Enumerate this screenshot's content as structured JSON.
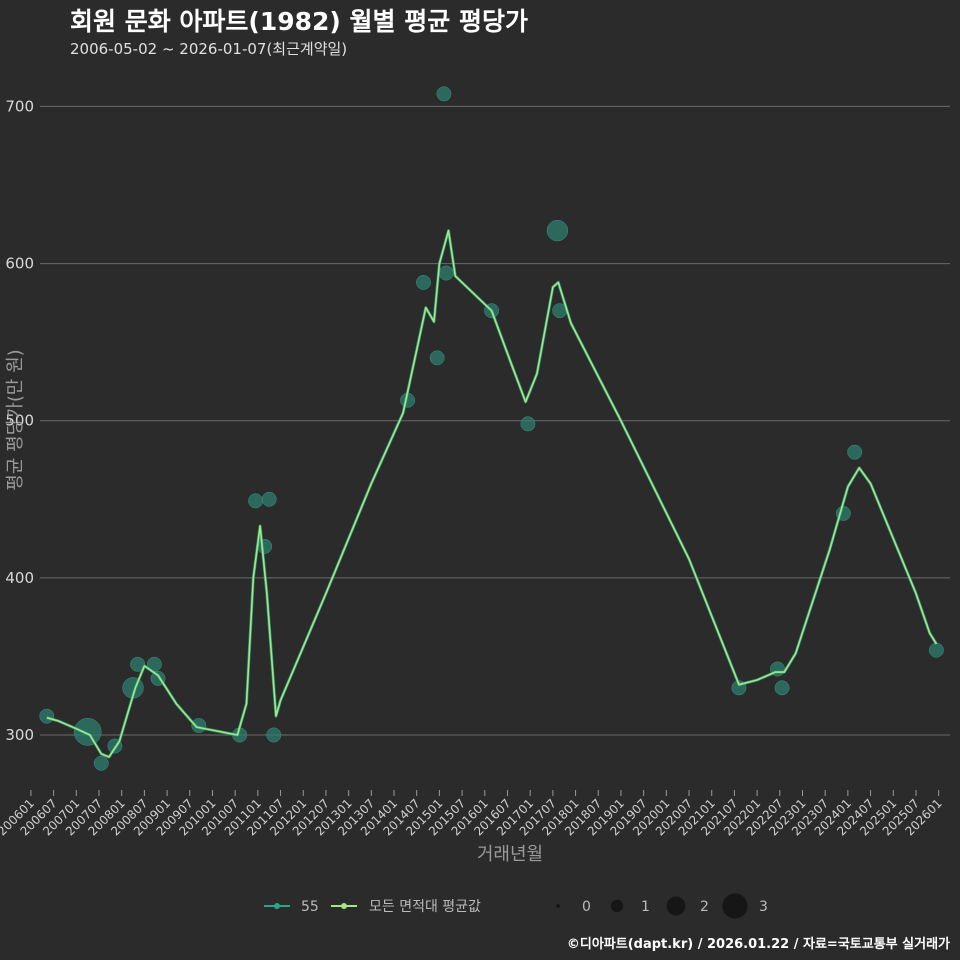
{
  "header": {
    "title": "회원 문화 아파트(1982) 월별 평균 평당가",
    "subtitle": "2006-05-02 ~ 2026-01-07(최근계약일)"
  },
  "caption": "©디아파트(dapt.kr) / 2026.01.22 / 자료=국토교통부 실거래가",
  "colors": {
    "background": "#2b2b2c",
    "grid": "#6b6b6b",
    "point": "#2f7d6e",
    "line_area": "#2aa58c",
    "line_all": "#a6e87e"
  },
  "chart_data": {
    "type": "scatter",
    "xlabel": "거래년월",
    "ylabel": "평균 평당가(만 원)",
    "ylim": [
      265,
      720
    ],
    "yticks": [
      300,
      400,
      500,
      600,
      700
    ],
    "xlim": [
      2006.2,
      2026.25
    ],
    "xticks": [
      "200601",
      "200607",
      "200701",
      "200707",
      "200801",
      "200807",
      "200901",
      "200907",
      "201001",
      "201007",
      "201101",
      "201107",
      "201201",
      "201207",
      "201301",
      "201307",
      "201401",
      "201407",
      "201501",
      "201507",
      "201601",
      "201607",
      "201701",
      "201707",
      "201801",
      "201807",
      "201901",
      "201907",
      "202001",
      "202007",
      "202101",
      "202107",
      "202201",
      "202207",
      "202301",
      "202307",
      "202401",
      "202407",
      "202501",
      "202507",
      "202601"
    ],
    "series": [
      {
        "name": "55",
        "points": [
          {
            "t": 2006.35,
            "v": 312,
            "n": 1
          },
          {
            "t": 2007.25,
            "v": 302,
            "n": 3
          },
          {
            "t": 2007.55,
            "v": 282,
            "n": 1
          },
          {
            "t": 2007.85,
            "v": 293,
            "n": 1
          },
          {
            "t": 2008.25,
            "v": 330,
            "n": 2
          },
          {
            "t": 2008.35,
            "v": 345,
            "n": 1
          },
          {
            "t": 2008.72,
            "v": 345,
            "n": 1
          },
          {
            "t": 2008.8,
            "v": 336,
            "n": 1
          },
          {
            "t": 2009.7,
            "v": 306,
            "n": 1
          },
          {
            "t": 2010.6,
            "v": 300,
            "n": 1
          },
          {
            "t": 2010.95,
            "v": 449,
            "n": 1
          },
          {
            "t": 2011.15,
            "v": 420,
            "n": 1
          },
          {
            "t": 2011.25,
            "v": 450,
            "n": 1
          },
          {
            "t": 2011.35,
            "v": 300,
            "n": 1
          },
          {
            "t": 2014.3,
            "v": 513,
            "n": 1
          },
          {
            "t": 2014.65,
            "v": 588,
            "n": 1
          },
          {
            "t": 2014.95,
            "v": 540,
            "n": 1
          },
          {
            "t": 2015.1,
            "v": 708,
            "n": 1
          },
          {
            "t": 2015.15,
            "v": 594,
            "n": 1
          },
          {
            "t": 2016.15,
            "v": 570,
            "n": 1
          },
          {
            "t": 2016.95,
            "v": 498,
            "n": 1
          },
          {
            "t": 2017.6,
            "v": 621,
            "n": 2
          },
          {
            "t": 2017.65,
            "v": 570,
            "n": 1
          },
          {
            "t": 2021.6,
            "v": 330,
            "n": 1
          },
          {
            "t": 2022.45,
            "v": 342,
            "n": 1
          },
          {
            "t": 2022.55,
            "v": 330,
            "n": 1
          },
          {
            "t": 2023.9,
            "v": 441,
            "n": 1
          },
          {
            "t": 2024.15,
            "v": 480,
            "n": 1
          },
          {
            "t": 2025.95,
            "v": 354,
            "n": 1
          }
        ]
      },
      {
        "name": "모든 면적대 평균값",
        "line": [
          {
            "t": 2006.35,
            "v": 311
          },
          {
            "t": 2006.6,
            "v": 309
          },
          {
            "t": 2007.0,
            "v": 304
          },
          {
            "t": 2007.3,
            "v": 300
          },
          {
            "t": 2007.55,
            "v": 288
          },
          {
            "t": 2007.72,
            "v": 286
          },
          {
            "t": 2007.95,
            "v": 296
          },
          {
            "t": 2008.3,
            "v": 330
          },
          {
            "t": 2008.5,
            "v": 344
          },
          {
            "t": 2008.8,
            "v": 338
          },
          {
            "t": 2009.2,
            "v": 320
          },
          {
            "t": 2009.65,
            "v": 305
          },
          {
            "t": 2010.55,
            "v": 300
          },
          {
            "t": 2010.75,
            "v": 320
          },
          {
            "t": 2010.9,
            "v": 400
          },
          {
            "t": 2011.05,
            "v": 433
          },
          {
            "t": 2011.2,
            "v": 390
          },
          {
            "t": 2011.4,
            "v": 312
          },
          {
            "t": 2011.5,
            "v": 322
          },
          {
            "t": 2012.5,
            "v": 390
          },
          {
            "t": 2013.5,
            "v": 460
          },
          {
            "t": 2014.2,
            "v": 505
          },
          {
            "t": 2014.5,
            "v": 545
          },
          {
            "t": 2014.7,
            "v": 572
          },
          {
            "t": 2014.88,
            "v": 563
          },
          {
            "t": 2015.0,
            "v": 600
          },
          {
            "t": 2015.2,
            "v": 621
          },
          {
            "t": 2015.35,
            "v": 592
          },
          {
            "t": 2016.15,
            "v": 570
          },
          {
            "t": 2016.6,
            "v": 535
          },
          {
            "t": 2016.9,
            "v": 512
          },
          {
            "t": 2017.15,
            "v": 530
          },
          {
            "t": 2017.5,
            "v": 585
          },
          {
            "t": 2017.62,
            "v": 588
          },
          {
            "t": 2017.9,
            "v": 562
          },
          {
            "t": 2019.0,
            "v": 500
          },
          {
            "t": 2020.5,
            "v": 412
          },
          {
            "t": 2021.6,
            "v": 332
          },
          {
            "t": 2022.0,
            "v": 335
          },
          {
            "t": 2022.4,
            "v": 340
          },
          {
            "t": 2022.6,
            "v": 340
          },
          {
            "t": 2022.85,
            "v": 352
          },
          {
            "t": 2023.6,
            "v": 418
          },
          {
            "t": 2024.0,
            "v": 458
          },
          {
            "t": 2024.25,
            "v": 470
          },
          {
            "t": 2024.5,
            "v": 460
          },
          {
            "t": 2025.5,
            "v": 390
          },
          {
            "t": 2025.8,
            "v": 365
          },
          {
            "t": 2025.95,
            "v": 358
          }
        ]
      }
    ],
    "legend": {
      "series_labels": [
        "55",
        "모든 면적대 평균값"
      ],
      "size_labels": [
        "0",
        "1",
        "2",
        "3"
      ],
      "size_values": [
        0,
        1,
        2,
        3
      ],
      "position": "bottom"
    }
  }
}
